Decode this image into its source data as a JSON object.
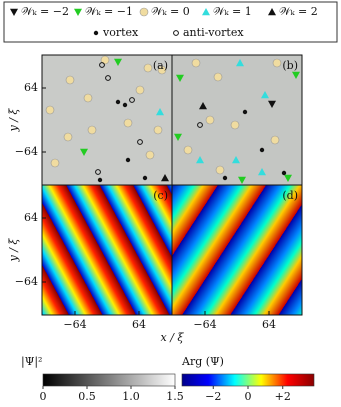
{
  "chart_data": {
    "type": "scatter",
    "legend": [
      {
        "name": "𝒲ₖ = −2",
        "marker": "tri-down",
        "color": "#111111"
      },
      {
        "name": "𝒲ₖ = −1",
        "marker": "tri-down",
        "color": "#22cc22"
      },
      {
        "name": "𝒲ₖ = 0",
        "marker": "circle",
        "color": "#f0dca0"
      },
      {
        "name": "𝒲ₖ = 1",
        "marker": "tri-up",
        "color": "#33dddd"
      },
      {
        "name": "𝒲ₖ = 2",
        "marker": "tri-up",
        "color": "#111111"
      },
      {
        "name": "vortex",
        "marker": "dot",
        "color": "#111111"
      },
      {
        "name": "anti-vortex",
        "marker": "ring",
        "color": "#111111"
      }
    ],
    "xlabel": "x / ξ",
    "ylabel": "y / ξ",
    "xlim": [
      -130,
      130
    ],
    "ylim": [
      -130,
      130
    ],
    "xticks": [
      {
        "value": -64,
        "label": "−64"
      },
      64
    ],
    "yticks": [
      {
        "value": -64,
        "label": "−64"
      },
      64
    ],
    "panels": [
      {
        "label": "(a)",
        "series": [
          {
            "x": [],
            "y": []
          },
          {
            "x": [
              22,
              -46
            ],
            "y": [
              116,
              -64
            ]
          },
          {
            "x": [
              -4,
              82,
              -74,
              -38,
              -114,
              -78,
              -30,
              42,
              66,
              110,
              102,
              -104,
              86
            ],
            "y": [
              120,
              104,
              80,
              44,
              20,
              -34,
              -20,
              -6,
              60,
              100,
              -20,
              -86,
              -70
            ]
          },
          {
            "x": [
              106
            ],
            "y": [
              16
            ]
          },
          {
            "x": [
              116
            ],
            "y": [
              -116
            ]
          },
          {
            "x": [
              36,
              22,
              76,
              -14,
              42
            ],
            "y": [
              30,
              36,
              -116,
              -120,
              -80
            ]
          },
          {
            "x": [
              -10,
              2,
              50,
              66,
              -18
            ],
            "y": [
              110,
              84,
              40,
              -44,
              -104
            ]
          }
        ]
      },
      {
        "label": "(b)",
        "series": [
          {
            "x": [
              70
            ],
            "y": [
              32
            ]
          },
          {
            "x": [
              -114,
              118,
              -118,
              10,
              102
            ],
            "y": [
              84,
              90,
              -34,
              -120,
              -116
            ]
          },
          {
            "x": [
              -82,
              -38,
              80,
              -54,
              -4,
              76,
              -34,
              -98
            ],
            "y": [
              114,
              86,
              114,
              0,
              -10,
              -40,
              -100,
              -60
            ]
          },
          {
            "x": [
              6,
              56,
              -2,
              -74,
              50
            ],
            "y": [
              114,
              50,
              -80,
              -80,
              -104
            ]
          },
          {
            "x": [
              -68
            ],
            "y": [
              28
            ]
          },
          {
            "x": [
              16,
              50,
              94,
              -24
            ],
            "y": [
              16,
              -60,
              -106,
              -116
            ]
          },
          {
            "x": [
              -74
            ],
            "y": [
              -10
            ]
          }
        ]
      },
      {
        "label": "(c)"
      },
      {
        "label": "(d)"
      }
    ],
    "colorbars": [
      {
        "label": "|Ψ|²",
        "lim": [
          0,
          1.5
        ],
        "ticks": [
          0,
          0.5,
          {
            "value": 1,
            "label": "1.0"
          },
          1.5
        ],
        "colors": [
          "#000000",
          "#ffffff"
        ]
      },
      {
        "label": "Arg (Ψ)",
        "lim": [
          -3.8,
          3.8
        ],
        "ticks": [
          {
            "value": -2,
            "label": "−2"
          },
          0,
          {
            "value": 2,
            "label": "+2"
          }
        ],
        "colors": [
          "#00008b",
          "#0000ff",
          "#00ffff",
          "#ffff00",
          "#ff0000",
          "#8b0000"
        ]
      }
    ]
  }
}
